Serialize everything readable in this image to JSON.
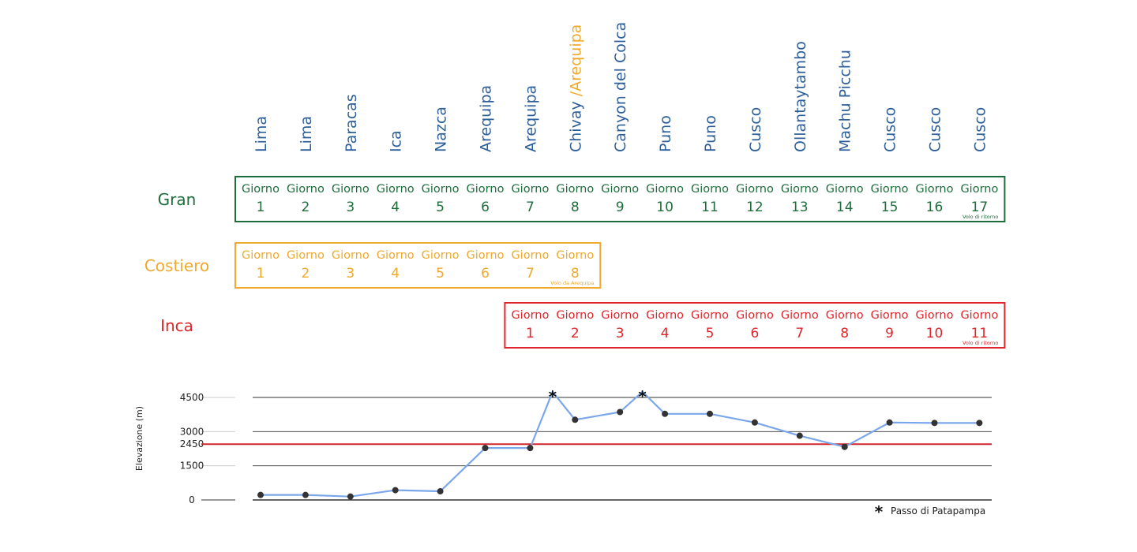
{
  "locations": [
    {
      "name": "Lima"
    },
    {
      "name": "Lima"
    },
    {
      "name": "Paracas"
    },
    {
      "name": "Ica"
    },
    {
      "name": "Nazca"
    },
    {
      "name": "Arequipa"
    },
    {
      "name": "Arequipa"
    },
    {
      "name": "Chivay",
      "alt": " /Arequipa"
    },
    {
      "name": "Canyon del Colca"
    },
    {
      "name": "Puno"
    },
    {
      "name": "Puno"
    },
    {
      "name": "Cusco"
    },
    {
      "name": "Ollantaytambo"
    },
    {
      "name": "Machu Picchu"
    },
    {
      "name": "Cusco"
    },
    {
      "name": "Cusco"
    },
    {
      "name": "Cusco"
    }
  ],
  "tours": [
    {
      "name": "Gran",
      "color": "#1e6e3c",
      "start_index": 0,
      "day_word": "Giorno",
      "days": [
        1,
        2,
        3,
        4,
        5,
        6,
        7,
        8,
        9,
        10,
        11,
        12,
        13,
        14,
        15,
        16,
        17
      ],
      "note": "Volo di ritorno"
    },
    {
      "name": "Costiero",
      "color": "#f0a92c",
      "start_index": 0,
      "day_word": "Giorno",
      "days": [
        1,
        2,
        3,
        4,
        5,
        6,
        7,
        8
      ],
      "note": "Volo da Arequipa"
    },
    {
      "name": "Inca",
      "color": "#e0262c",
      "start_index": 6,
      "day_word": "Giorno",
      "days": [
        1,
        2,
        3,
        4,
        5,
        6,
        7,
        8,
        9,
        10,
        11
      ],
      "note": "Volo di ritorno"
    }
  ],
  "chart_data": {
    "type": "line",
    "ylabel": "Elevazione (m)",
    "yticks": [
      0,
      1500,
      2450,
      3000,
      4500
    ],
    "ylim": [
      0,
      4600
    ],
    "reference_line": {
      "value": 2450,
      "color": "#d0272d"
    },
    "series": [
      {
        "color": "#7ba7ea",
        "points": [
          {
            "x": 1,
            "y": 220
          },
          {
            "x": 2,
            "y": 220
          },
          {
            "x": 3,
            "y": 150
          },
          {
            "x": 4,
            "y": 430
          },
          {
            "x": 5,
            "y": 380
          },
          {
            "x": 6,
            "y": 2280
          },
          {
            "x": 7,
            "y": 2280
          },
          {
            "x": 7.5,
            "y": 4900,
            "marker": "star"
          },
          {
            "x": 8,
            "y": 3520
          },
          {
            "x": 9,
            "y": 3860
          },
          {
            "x": 9.5,
            "y": 4900,
            "marker": "star"
          },
          {
            "x": 10,
            "y": 3780
          },
          {
            "x": 11,
            "y": 3780
          },
          {
            "x": 12,
            "y": 3400
          },
          {
            "x": 13,
            "y": 2820
          },
          {
            "x": 14,
            "y": 2330
          },
          {
            "x": 15,
            "y": 3400
          },
          {
            "x": 16,
            "y": 3380
          },
          {
            "x": 17,
            "y": 3380
          }
        ]
      }
    ],
    "legend": {
      "symbol": "*",
      "text": "Passo di Patapampa"
    }
  }
}
